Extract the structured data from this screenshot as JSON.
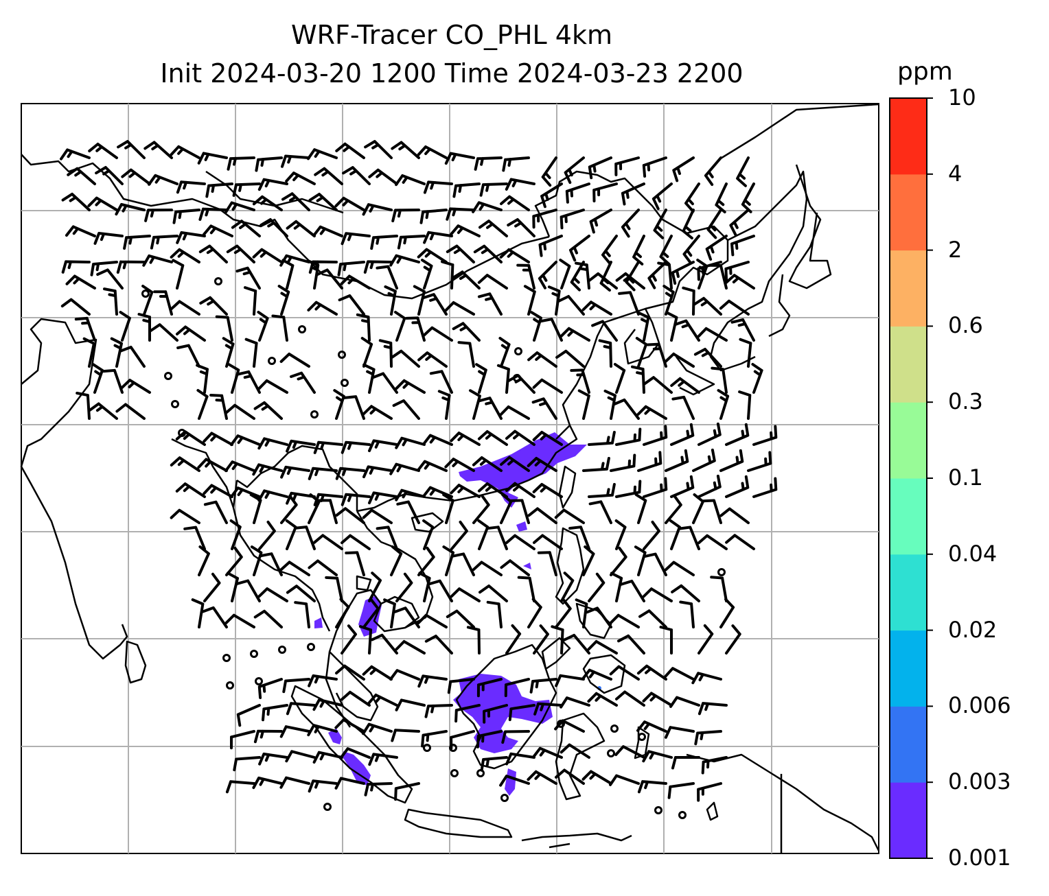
{
  "title": {
    "line1": "WRF-Tracer CO_PHL 4km",
    "line2": "Init 2024-03-20 1200 Time 2024-03-23 2200"
  },
  "colorbar": {
    "unit": "ppm",
    "tick_labels": [
      "0.001",
      "0.003",
      "0.006",
      "0.02",
      "0.04",
      "0.1",
      "0.3",
      "0.6",
      "2",
      "4",
      "10"
    ],
    "colors": [
      "#6a2cff",
      "#3374f3",
      "#03b2ec",
      "#2ee0d2",
      "#67fdbd",
      "#98fb97",
      "#cfe08a",
      "#fdb163",
      "#ff6f3d",
      "#fe2c17"
    ]
  },
  "map": {
    "gridlines": true,
    "tracer_color": "#6a2cff",
    "wind_barbs": "black"
  }
}
